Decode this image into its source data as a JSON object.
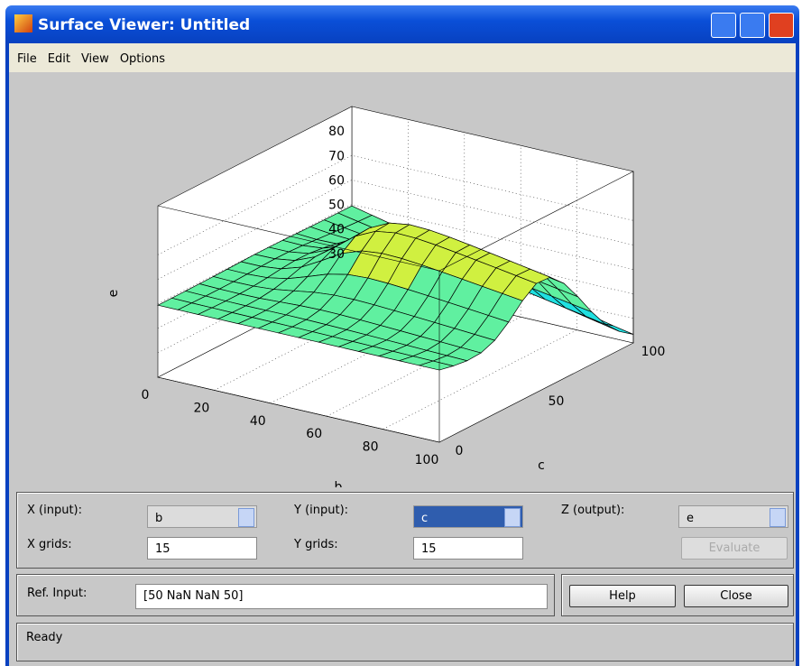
{
  "window": {
    "title": "Surface Viewer: Untitled"
  },
  "menu": [
    "File",
    "Edit",
    "View",
    "Options"
  ],
  "plot": {
    "z_label": "e",
    "x_label": "b",
    "y_label": "c",
    "z_ticks": [
      "30",
      "40",
      "50",
      "60",
      "70",
      "80"
    ],
    "x_ticks": [
      "0",
      "20",
      "40",
      "60",
      "80",
      "100"
    ],
    "y_ticks": [
      "0",
      "50",
      "100"
    ]
  },
  "controls": {
    "x_input_label": "X (input):",
    "x_input": "b",
    "y_input_label": "Y (input):",
    "y_input": "c",
    "z_output_label": "Z (output):",
    "z_output": "e",
    "x_grids_label": "X grids:",
    "x_grids": "15",
    "y_grids_label": "Y grids:",
    "y_grids": "15",
    "evaluate": "Evaluate"
  },
  "ref": {
    "label": "Ref. Input:",
    "value": "[50 NaN NaN 50]"
  },
  "buttons": {
    "help": "Help",
    "close": "Close"
  },
  "status": "Ready"
}
